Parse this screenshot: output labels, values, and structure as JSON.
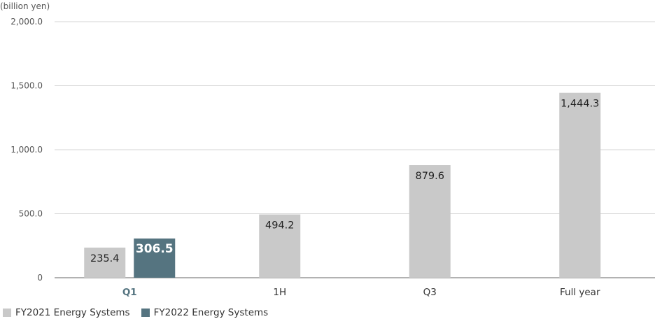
{
  "chart_data": {
    "type": "bar",
    "unit_label": "(billion yen)",
    "categories": [
      "Q1",
      "1H",
      "Q3",
      "Full year"
    ],
    "highlighted_category": "Q1",
    "y_ticks": [
      "2,000.0",
      "1,500.0",
      "1,000.0",
      "500.0",
      "0"
    ],
    "ylim": [
      0,
      2000
    ],
    "grid": true,
    "legend_position": "bottom-left",
    "series": [
      {
        "name": "FY2021 Energy Systems",
        "color": "#c9c9c9",
        "values": [
          235.4,
          494.2,
          879.6,
          1444.3
        ],
        "labels": [
          "235.4",
          "494.2",
          "879.6",
          "1,444.3"
        ]
      },
      {
        "name": "FY2022 Energy Systems",
        "color": "#557480",
        "values": [
          306.5,
          null,
          null,
          null
        ],
        "labels": [
          "306.5",
          null,
          null,
          null
        ]
      }
    ]
  }
}
